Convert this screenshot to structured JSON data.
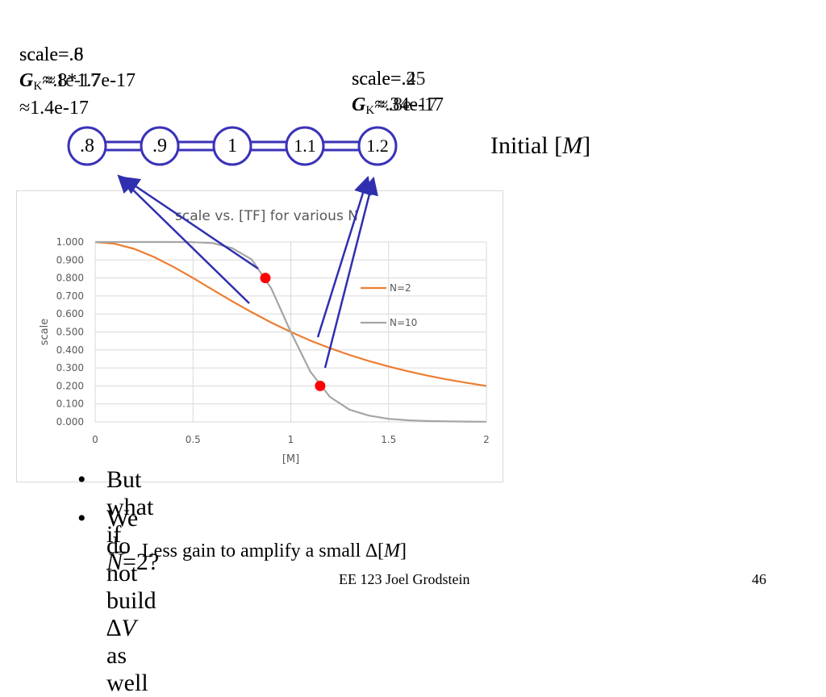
{
  "slide": {
    "annotations": {
      "left_scale_a": "scale=.8",
      "left_scale_b": "scale=.6",
      "left_gk_prefix_a": "G",
      "left_gk_sub": "K",
      "left_gk_rest_a": "≈.8*1.7e-17",
      "left_gk_rest_b": "≈1e-17",
      "left_approx_line": "≈1.4e-17",
      "right_scale_a": "scale=.2",
      "right_scale_b": "scale=.45",
      "right_gk_prefix": "G",
      "right_gk_sub": "K",
      "right_gk_rest_a": "≈.34e-17",
      "right_gk_rest_b": "≈.8e-17"
    },
    "chain": {
      "nodes": [
        ".8",
        ".9",
        "1",
        "1.1",
        "1.2"
      ],
      "initial_label_pre": "Initial [",
      "initial_label_var": "M",
      "initial_label_post": "]"
    },
    "bullets": [
      {
        "marker": "•",
        "pre": "But what if ",
        "var": "N",
        "post": "=2?"
      },
      {
        "marker": "•",
        "pre": "We do not build ∆",
        "var": "V",
        "post": " as well"
      }
    ],
    "sub_bullet": {
      "marker": "–",
      "pre": "Less gain to amplify a small ∆[",
      "var": "M",
      "post": "]"
    },
    "footer": "EE 123 Joel Grodstein",
    "page_number": "46"
  },
  "colors": {
    "node_stroke": "#3a32b8",
    "arrow": "#2f2fb0",
    "series_n2": "#ed7d31",
    "series_n10": "#a5a5a5",
    "marker": "#ff0000",
    "grid": "#d9d9d9",
    "axis_text": "#595959"
  },
  "chart_data": {
    "type": "line",
    "title": "scale vs. [TF] for various N",
    "xlabel": "[M]",
    "ylabel": "scale",
    "xlim": [
      0,
      2
    ],
    "ylim": [
      0,
      1
    ],
    "x_ticks": [
      "0",
      "0.5",
      "1",
      "1.5",
      "2"
    ],
    "y_ticks": [
      "0.000",
      "0.100",
      "0.200",
      "0.300",
      "0.400",
      "0.500",
      "0.600",
      "0.700",
      "0.800",
      "0.900",
      "1.000"
    ],
    "grid": true,
    "legend_position": "right",
    "x": [
      0,
      0.1,
      0.2,
      0.3,
      0.4,
      0.5,
      0.6,
      0.7,
      0.8,
      0.9,
      1.0,
      1.1,
      1.2,
      1.3,
      1.4,
      1.5,
      1.6,
      1.7,
      1.8,
      1.9,
      2.0
    ],
    "series": [
      {
        "name": "N=2",
        "values": [
          1.0,
          0.99,
          0.962,
          0.917,
          0.862,
          0.8,
          0.735,
          0.671,
          0.61,
          0.552,
          0.5,
          0.452,
          0.41,
          0.372,
          0.338,
          0.308,
          0.281,
          0.257,
          0.236,
          0.217,
          0.2
        ]
      },
      {
        "name": "N=10",
        "values": [
          1.0,
          1.0,
          1.0,
          1.0,
          1.0,
          0.999,
          0.994,
          0.966,
          0.903,
          0.742,
          0.5,
          0.279,
          0.139,
          0.068,
          0.035,
          0.017,
          0.009,
          0.005,
          0.003,
          0.002,
          0.001
        ]
      }
    ],
    "highlighted_points": [
      {
        "x": 0.87,
        "y": 0.8
      },
      {
        "x": 1.15,
        "y": 0.2
      }
    ]
  }
}
